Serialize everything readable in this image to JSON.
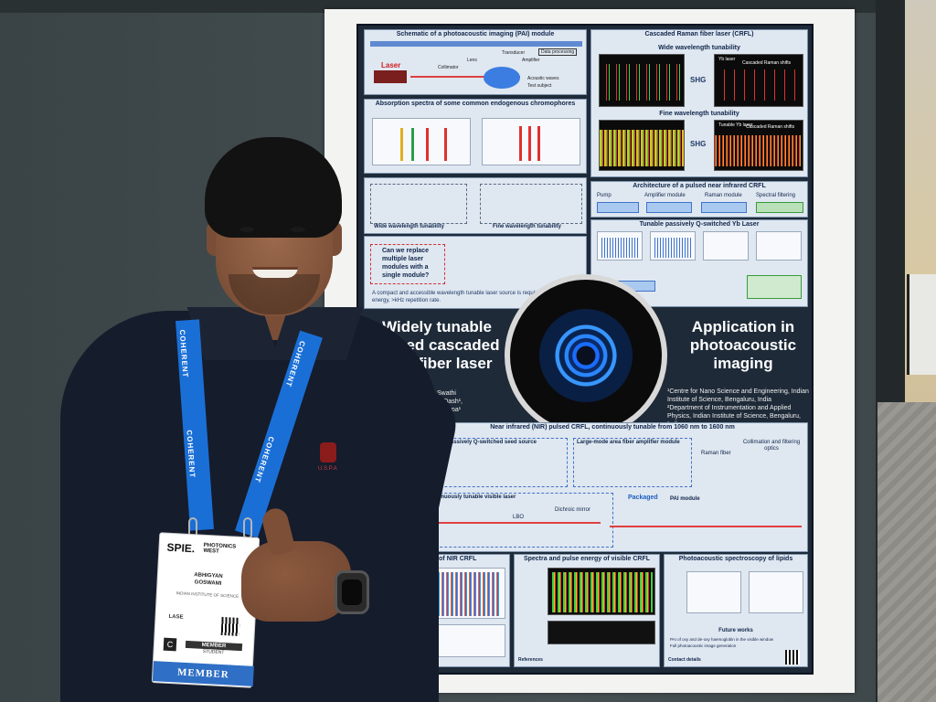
{
  "poster": {
    "title_left": "Widely tunable pulsed cascaded Raman fiber laser",
    "title_left_visible": "Widely tunable\npulsed cascaded\nman fiber laser",
    "title_right": "Application in photoacoustic imaging",
    "panel_pai_title": "Schematic of a photoacoustic imaging (PAI) module",
    "panel_absorption_title": "Absorption spectra of some common endogenous chromophores",
    "panel_crfl_title": "Cascaded Raman fiber laser (CRFL)",
    "wide_tunability": "Wide wavelength tunability",
    "fine_tunability": "Fine wavelength tunability",
    "shg": "SHG",
    "cascaded_raman": "Cascaded Raman shifts",
    "yb_laser": "Yb laser",
    "tunable_yb_laser": "Tunable Yb laser",
    "architecture_title": "Architecture of a pulsed near infrared CRFL",
    "pump": "Pump",
    "amplifier_module": "Amplifier module",
    "raman_module": "Raman module",
    "spectral_filtering": "Spectral filtering",
    "qswitched_title": "Tunable passively Q-switched Yb Laser",
    "question": "Can we replace multiple laser modules with a single module?",
    "compact_note": "A compact and accessible wavelength tunable laser source is required with ~μJ pulse energy, >kHz repetition rate.",
    "laser_label": "Laser",
    "collimator": "Collimator",
    "lens": "Lens",
    "transducer": "Transducer",
    "amplifier": "Amplifier",
    "data_processing": "Data processing",
    "acoustic_waves": "Acoustic waves",
    "test_subject": "Test subject",
    "wide_label": "Wide wavelength tunability",
    "fine_label": "Fine wavelength tunability",
    "authors": "Abhigyan Goswami¹, Swathi Padmanabhan², Sarthak Dash¹, ... Prakash², VR Supradeepa¹",
    "authors_visible": "higyan Goswami¹, Swathi\nmanabhan², Sarthak Dash¹,\nPrakash², VR Supradeepa¹",
    "affiliations": "¹Centre for Nano Science and Engineering, Indian Institute of Science, Bengaluru, India\n²Department of Instrumentation and Applied Physics, Indian Institute of Science, Bengaluru, India",
    "nir_title": "Near infrared (NIR) pulsed CRFL, continuously tunable from 1060 nm to 1600 nm",
    "seed_source": "Tunable passively Q-switched seed source",
    "large_mode": "Large-mode area fiber amplifier module",
    "raman_fiber": "Raman fiber",
    "collimation": "Collimation and filtering optics",
    "visible_laser": "Continuously tunable visible laser",
    "lbo": "LBO",
    "dichroic": "Dichroic mirror",
    "packaged": "Packaged",
    "pai_module": "PAI module",
    "pulse_energy_nir": "Pulse energy of NIR CRFL",
    "spectra_visible": "Spectra and pulse energy of visible CRFL",
    "pa_lipids": "Photoacoustic spectroscopy of lipids",
    "future_works": "Future works",
    "future_1": "PAI of oxy and de-oxy haemoglobin in the visible window",
    "future_2": "Full photoacoustic image generation",
    "references": "References",
    "contact": "Contact details"
  },
  "lanyard": {
    "text": "COHERENT"
  },
  "badge": {
    "logo": "SPIE.",
    "logo_sub": "PHOTONICS\nWEST",
    "name": "ABHIGYAN\nGOSWAMI",
    "institution": "INDIAN INSTITUTE OF SCIENCE",
    "category": "LASE",
    "member": "MEMBER",
    "student": "STUDENT",
    "footer": "MEMBER",
    "c_mark": "C"
  },
  "shirt_logo": "U.S.P.A",
  "colors": {
    "poster_bg": "#1e2a38",
    "panel_bg": "#dfe7f1",
    "lanyard": "#1a6fd6",
    "badge_footer": "#2f6fc5"
  }
}
